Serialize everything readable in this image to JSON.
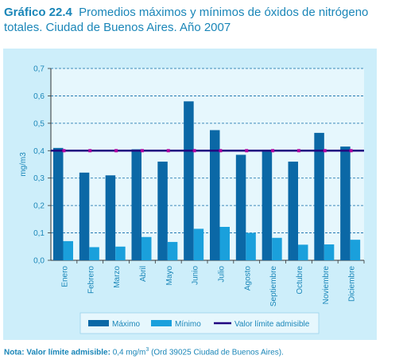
{
  "header": {
    "number": "Gráfico 22.4",
    "text": "Promedios máximos y mínimos de óxidos de nitrógeno totales. Ciudad de Buenos Aires. Año 2007"
  },
  "note": {
    "label": "Nota: Valor límite admisible:",
    "value": "0,4 mg/m",
    "sup": "3",
    "rest": "(Ord 39025 Ciudad de Buenos Aires)."
  },
  "colors": {
    "panel_bg": "#cdeefa",
    "plot_bg": "#e6f7fd",
    "maximo": "#0b68a6",
    "minimo": "#1aa0dc",
    "limit": "#200080",
    "text": "#1a86b8",
    "grid": "#0b68a6"
  },
  "chart_data": {
    "type": "bar",
    "categories": [
      "Enero",
      "Febrero",
      "Marzo",
      "Abril",
      "Mayo",
      "Junio",
      "Julio",
      "Agosto",
      "Septiembre",
      "Octubre",
      "Noviembre",
      "Diciembre"
    ],
    "series": [
      {
        "name": "Máximo",
        "values": [
          0.41,
          0.32,
          0.31,
          0.405,
          0.36,
          0.58,
          0.475,
          0.385,
          0.4,
          0.36,
          0.465,
          0.415
        ]
      },
      {
        "name": "Mínimo",
        "values": [
          0.07,
          0.048,
          0.05,
          0.085,
          0.067,
          0.115,
          0.122,
          0.1,
          0.082,
          0.057,
          0.058,
          0.075
        ]
      }
    ],
    "reference_line": {
      "name": "Valor límite admisible",
      "value": 0.4
    },
    "ylabel": "mg/m3",
    "xlabel": "",
    "ylim": [
      0,
      0.7
    ],
    "yticks": [
      "0,0",
      "0,1",
      "0,2",
      "0,3",
      "0,4",
      "0,5",
      "0,6",
      "0,7"
    ],
    "grid": true,
    "legend_position": "bottom"
  }
}
